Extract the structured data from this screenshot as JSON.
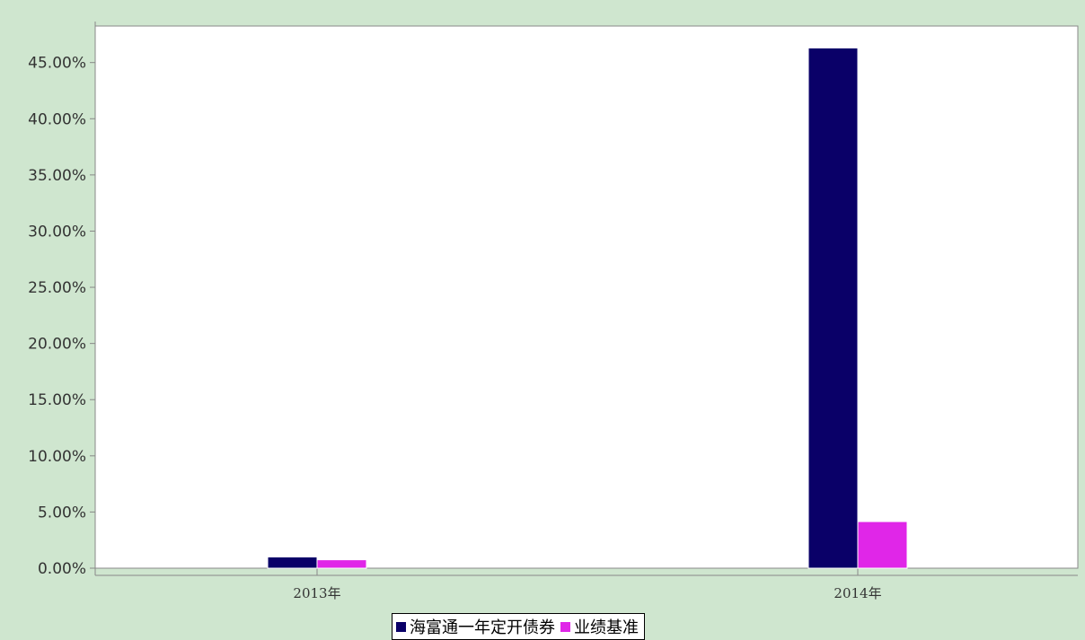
{
  "chart_data": {
    "type": "bar",
    "categories": [
      "2013年",
      "2014年"
    ],
    "series": [
      {
        "name": "海富通一年定开债券",
        "color": "#0a0068",
        "values": [
          1.0,
          46.3
        ]
      },
      {
        "name": "业绩基准",
        "color": "#e026e8",
        "values": [
          0.75,
          4.15
        ]
      }
    ],
    "y_ticks": [
      "0.00%",
      "5.00%",
      "10.00%",
      "15.00%",
      "20.00%",
      "25.00%",
      "30.00%",
      "35.00%",
      "40.00%",
      "45.00%"
    ],
    "y_tick_values": [
      0,
      5,
      10,
      15,
      20,
      25,
      30,
      35,
      40,
      45
    ],
    "ylim": [
      0,
      48.25
    ],
    "title": "",
    "xlabel": "",
    "ylabel": "",
    "grid": false,
    "legend_position": "bottom"
  },
  "colors": {
    "background": "#cfe6cf",
    "plot_background": "#ffffff",
    "axis": "#888888"
  }
}
